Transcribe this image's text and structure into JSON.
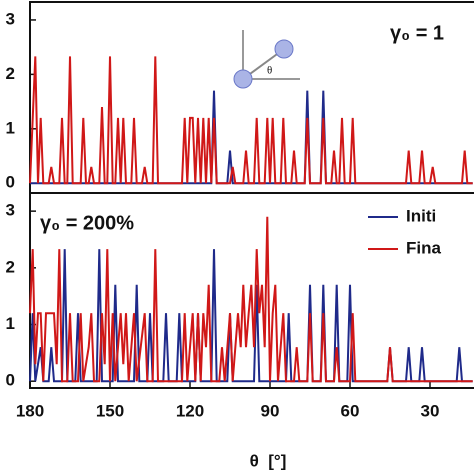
{
  "chart_data": [
    {
      "type": "line",
      "annotation": "γ₀ = 1",
      "inset_label": "θ",
      "xlim": [
        180,
        13.5
      ],
      "ylim": [
        -0.18,
        3.33
      ],
      "yticks": [
        0,
        1,
        2,
        3
      ],
      "series": [
        {
          "name": "Initial",
          "color": "#1f2a8a",
          "x": [
            180,
            112,
            111,
            110,
            106,
            105,
            104,
            77,
            76,
            75,
            71,
            70,
            69,
            14
          ],
          "values": [
            0,
            0,
            1.7,
            0,
            0,
            0.6,
            0,
            0,
            1.7,
            0,
            0,
            1.7,
            0,
            0
          ]
        },
        {
          "name": "Final",
          "color": "#d01818",
          "x": [
            180,
            178,
            177,
            176,
            175,
            173,
            172,
            171,
            169,
            168,
            167,
            166,
            165,
            164,
            161,
            160,
            159,
            158,
            157,
            156,
            154,
            153,
            152,
            151,
            150,
            149,
            148,
            147,
            146,
            145,
            144,
            142,
            141,
            140,
            138,
            137,
            136,
            134,
            133,
            132,
            123,
            122,
            121,
            120,
            119,
            118,
            117,
            116,
            115,
            114,
            113,
            112,
            111,
            110,
            105,
            104,
            103,
            100,
            99,
            98,
            96,
            95,
            94,
            92,
            91,
            90,
            89,
            88,
            86,
            85,
            84,
            82,
            81,
            80,
            77,
            76,
            75,
            71,
            70,
            69,
            67,
            66,
            65,
            64,
            63,
            62,
            60,
            59,
            58,
            39,
            38,
            37,
            34,
            33,
            32,
            30,
            29,
            28,
            18,
            17,
            16,
            14
          ],
          "values": [
            0,
            2.33,
            0,
            1.2,
            0,
            0,
            0.3,
            0,
            0,
            1.2,
            0,
            0,
            2.33,
            0,
            0,
            1.2,
            0,
            0,
            0.3,
            0,
            0,
            1.4,
            0,
            0,
            2.33,
            0,
            0,
            1.2,
            0,
            1.2,
            0,
            0,
            1.2,
            0,
            0,
            0.3,
            0,
            0,
            2.33,
            0,
            0,
            1.2,
            0,
            1.2,
            1.2,
            0,
            1.2,
            0,
            1.2,
            0,
            1.2,
            0,
            1.2,
            0,
            0,
            0.3,
            0,
            0,
            0.6,
            0,
            0,
            1.2,
            0,
            0,
            1.2,
            0,
            1.2,
            0,
            0,
            1.2,
            0,
            0,
            0.6,
            0,
            0,
            1.2,
            0,
            0,
            1.2,
            0,
            0,
            0.6,
            0,
            0,
            1.2,
            0,
            0,
            1.2,
            0,
            0,
            0.6,
            0,
            0,
            0.6,
            0,
            0,
            0.3,
            0,
            0,
            0.6,
            0,
            0
          ]
        }
      ]
    },
    {
      "type": "line",
      "annotation": "γ₀ = 200%",
      "x_label": "θ  [°]",
      "legend": "upper right",
      "xlim": [
        180,
        13.5
      ],
      "ylim": [
        -0.12,
        3.32
      ],
      "yticks": [
        0,
        1,
        2,
        3
      ],
      "xticks": [
        180,
        150,
        120,
        90,
        60,
        30
      ],
      "series": [
        {
          "name": "Initi",
          "color": "#1f2a8a",
          "x": [
            180,
            179,
            178,
            176,
            175,
            173,
            172,
            171,
            168,
            167,
            166,
            163,
            162,
            161,
            155,
            154,
            153,
            149,
            148,
            147,
            141,
            140,
            139,
            136,
            135,
            134,
            130,
            129,
            128,
            125,
            124,
            123,
            118,
            117,
            116,
            112,
            111,
            110,
            106,
            105,
            104,
            96,
            95,
            94,
            84,
            83,
            82,
            76,
            75,
            74,
            71,
            70,
            69,
            66,
            65,
            64,
            61,
            60,
            59,
            46,
            45,
            44,
            39,
            38,
            37,
            34,
            33,
            32,
            20,
            19,
            18,
            14
          ],
          "values": [
            0,
            1.2,
            0,
            0.6,
            0,
            0,
            0.6,
            0,
            0,
            2.33,
            0,
            0,
            1.2,
            0,
            0,
            2.33,
            0,
            0,
            1.7,
            0,
            0,
            1.7,
            0,
            0,
            1.2,
            0,
            0,
            1.2,
            0,
            0,
            1.2,
            0,
            0,
            1.2,
            0,
            0,
            2.33,
            0,
            0,
            1.2,
            0,
            0,
            1.7,
            0,
            0,
            1.2,
            0,
            0,
            1.7,
            0,
            0,
            1.7,
            0,
            0,
            1.7,
            0,
            0,
            1.7,
            0,
            0,
            0.6,
            0,
            0,
            0.6,
            0,
            0,
            0.6,
            0,
            0,
            0.6,
            0,
            0
          ]
        },
        {
          "name": "Fina",
          "color": "#d01818",
          "x": [
            180,
            179,
            178,
            177,
            176,
            175,
            174,
            173,
            172,
            171,
            170,
            169,
            168,
            166,
            165,
            164,
            162,
            161,
            160,
            158,
            157,
            156,
            154,
            153,
            152,
            151,
            150,
            149,
            148,
            146,
            145,
            144,
            143,
            141,
            140,
            137,
            136,
            134,
            133,
            132,
            123,
            122,
            121,
            120,
            119,
            118,
            117,
            116,
            115,
            114,
            113,
            112,
            109,
            108,
            107,
            105,
            104,
            102,
            101,
            100,
            99,
            98,
            97,
            96,
            95,
            94,
            93,
            92,
            91,
            90,
            89,
            88,
            87,
            85,
            84,
            81,
            80,
            79,
            76,
            75,
            74,
            71,
            70,
            69,
            66,
            65,
            64,
            60,
            59,
            58,
            46,
            45,
            44,
            14
          ],
          "values": [
            1.2,
            2.33,
            0.3,
            1.2,
            1.2,
            0,
            1.2,
            1.2,
            1.2,
            1.2,
            0.3,
            2.33,
            0,
            0,
            1.2,
            0,
            0,
            1.2,
            0,
            0.6,
            1.2,
            0,
            0,
            1.2,
            0.3,
            2.33,
            0,
            1.2,
            0,
            1.2,
            0.3,
            1.2,
            0,
            1.2,
            0,
            1.2,
            0,
            0,
            2.33,
            0,
            0,
            1.2,
            0,
            0.6,
            1.2,
            0,
            1.2,
            0,
            1.2,
            0.6,
            1.7,
            0,
            0,
            0.6,
            0,
            1.2,
            0,
            1.2,
            0.6,
            1.7,
            0.6,
            1.2,
            1.7,
            0.6,
            2.33,
            1.2,
            1.7,
            0.6,
            2.9,
            0,
            1.2,
            1.7,
            0,
            1.2,
            0,
            0,
            0.6,
            0,
            0,
            1.2,
            0,
            0,
            1.2,
            0,
            0,
            0.6,
            0,
            0,
            1.2,
            0,
            0,
            0.6,
            0,
            0
          ]
        }
      ]
    }
  ]
}
